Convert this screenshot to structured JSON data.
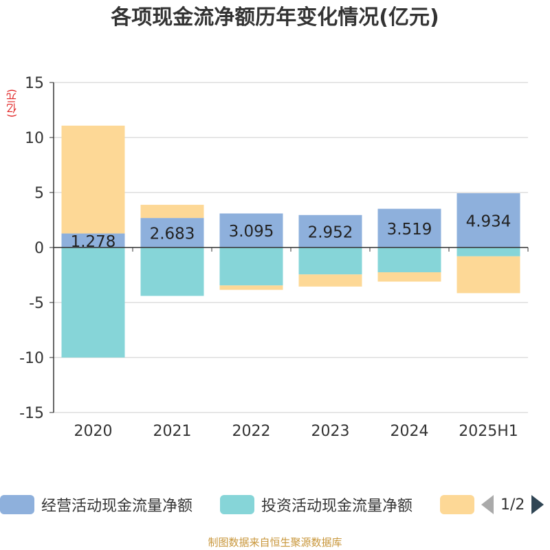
{
  "title": "各项现金流净额历年变化情况(亿元)",
  "unit_label": "(亿元)",
  "footer": "制图数据来自恒生聚源数据库",
  "legend": {
    "items": [
      {
        "label": "经营活动现金流量净额",
        "color": "#8eb0dc"
      },
      {
        "label": "投资活动现金流量净额",
        "color": "#86d5d8"
      },
      {
        "label": "",
        "color": "#fdd896"
      }
    ],
    "page": "1/2"
  },
  "chart_data": {
    "type": "bar",
    "stacked": true,
    "categories": [
      "2020",
      "2021",
      "2022",
      "2023",
      "2024",
      "2025H1"
    ],
    "ylim": [
      -15,
      15
    ],
    "yticks": [
      15,
      10,
      5,
      0,
      -5,
      -10,
      -15
    ],
    "grid": true,
    "legend_position": "bottom",
    "series": [
      {
        "name": "经营活动现金流量净额",
        "color": "#8eb0dc",
        "values": [
          1.278,
          2.683,
          3.095,
          2.952,
          3.519,
          4.934
        ],
        "show_labels": true
      },
      {
        "name": "投资活动现金流量净额",
        "color": "#86d5d8",
        "values": [
          -10.0,
          -4.4,
          -3.45,
          -2.45,
          -2.25,
          -0.8
        ],
        "show_labels": false
      },
      {
        "color": "#fdd896",
        "values": [
          9.8,
          1.2,
          -0.4,
          -1.1,
          -0.85,
          -3.35
        ],
        "show_labels": false
      }
    ]
  }
}
